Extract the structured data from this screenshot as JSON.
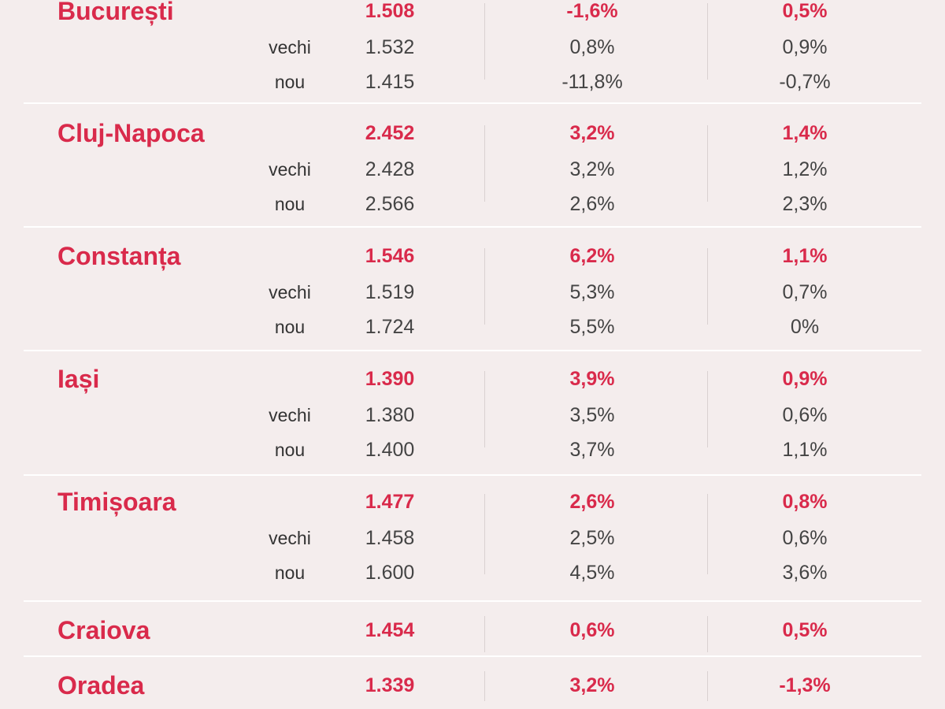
{
  "groups": [
    {
      "city": "București",
      "main": {
        "price": "1.508",
        "change1": "-1,6%",
        "change2": "0,5%"
      },
      "rows": [
        {
          "label": "vechi",
          "price": "1.532",
          "change1": "0,8%",
          "change2": "0,9%"
        },
        {
          "label": "nou",
          "price": "1.415",
          "change1": "-11,8%",
          "change2": "-0,7%"
        }
      ]
    },
    {
      "city": "Cluj-Napoca",
      "main": {
        "price": "2.452",
        "change1": "3,2%",
        "change2": "1,4%"
      },
      "rows": [
        {
          "label": "vechi",
          "price": "2.428",
          "change1": "3,2%",
          "change2": "1,2%"
        },
        {
          "label": "nou",
          "price": "2.566",
          "change1": "2,6%",
          "change2": "2,3%"
        }
      ]
    },
    {
      "city": "Constanța",
      "main": {
        "price": "1.546",
        "change1": "6,2%",
        "change2": "1,1%"
      },
      "rows": [
        {
          "label": "vechi",
          "price": "1.519",
          "change1": "5,3%",
          "change2": "0,7%"
        },
        {
          "label": "nou",
          "price": "1.724",
          "change1": "5,5%",
          "change2": "0%"
        }
      ]
    },
    {
      "city": "Iași",
      "main": {
        "price": "1.390",
        "change1": "3,9%",
        "change2": "0,9%"
      },
      "rows": [
        {
          "label": "vechi",
          "price": "1.380",
          "change1": "3,5%",
          "change2": "0,6%"
        },
        {
          "label": "nou",
          "price": "1.400",
          "change1": "3,7%",
          "change2": "1,1%"
        }
      ]
    },
    {
      "city": "Timișoara",
      "main": {
        "price": "1.477",
        "change1": "2,6%",
        "change2": "0,8%"
      },
      "rows": [
        {
          "label": "vechi",
          "price": "1.458",
          "change1": "2,5%",
          "change2": "0,6%"
        },
        {
          "label": "nou",
          "price": "1.600",
          "change1": "4,5%",
          "change2": "3,6%"
        }
      ]
    },
    {
      "city": "Craiova",
      "main": {
        "price": "1.454",
        "change1": "0,6%",
        "change2": "0,5%"
      },
      "rows": []
    },
    {
      "city": "Oradea",
      "main": {
        "price": "1.339",
        "change1": "3,2%",
        "change2": "-1,3%"
      },
      "rows": []
    }
  ],
  "colors": {
    "accent": "#d92a4b",
    "text": "#444444",
    "background": "#f4eded",
    "divider": "#ffffff"
  }
}
